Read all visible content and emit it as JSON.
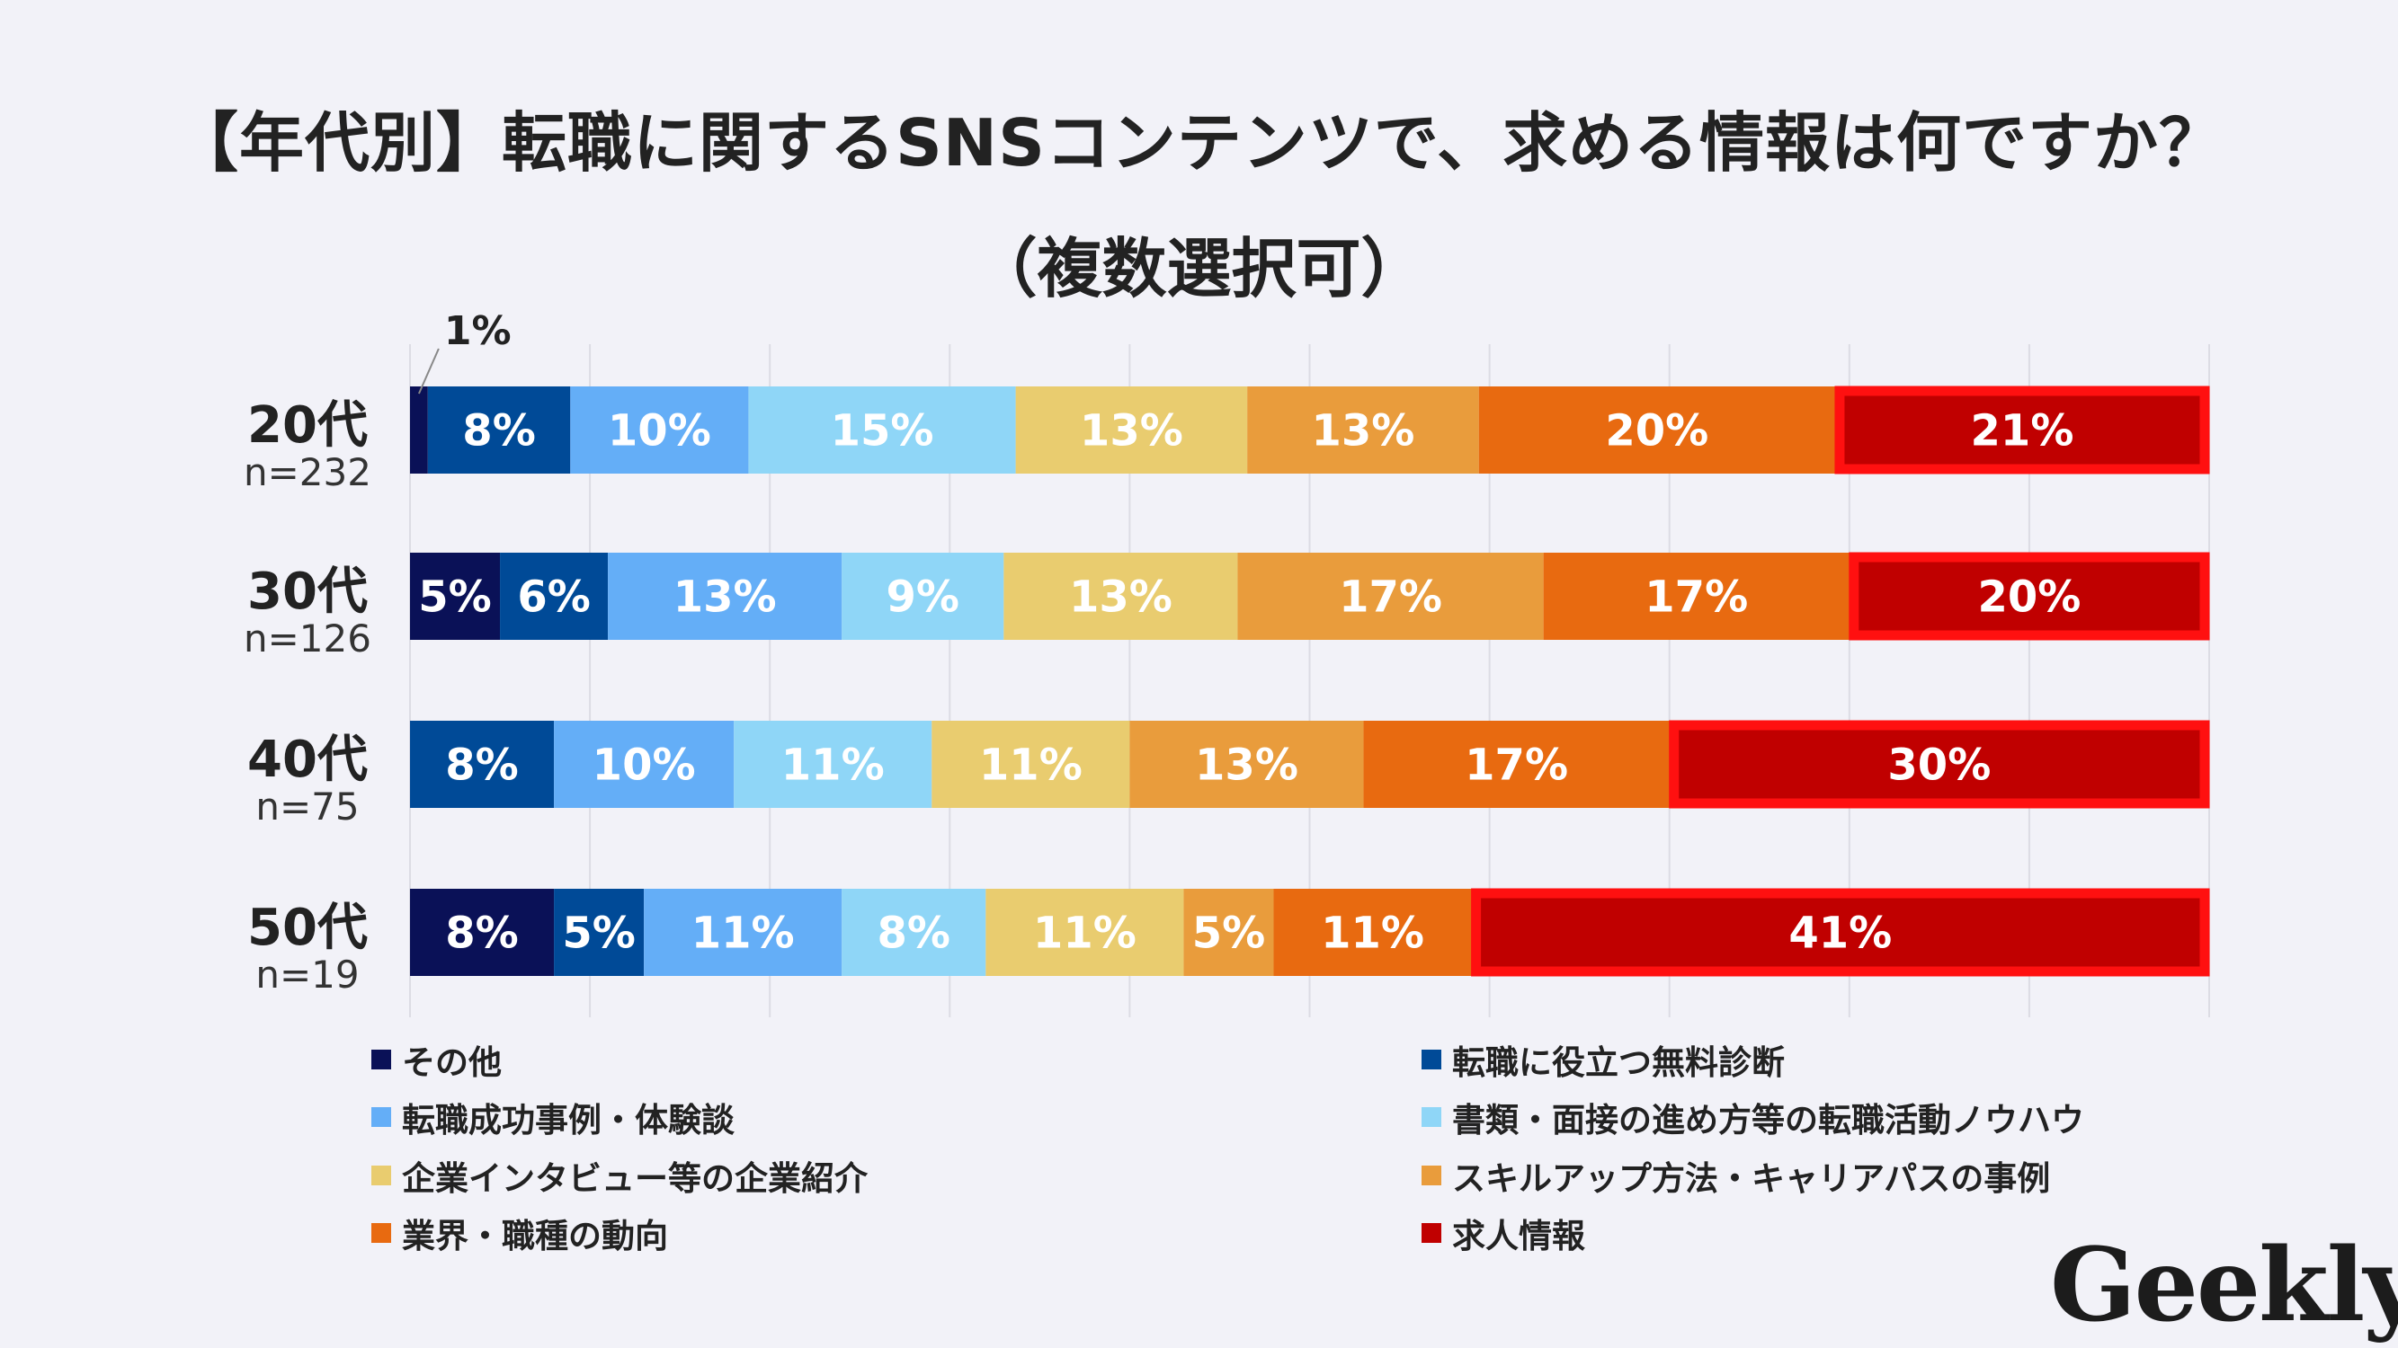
{
  "title": "【年代別】転職に関するSNSコンテンツで、求める情報は何ですか？",
  "subtitle": "（複数選択可）",
  "logo": "Geekly",
  "chart_data": {
    "type": "bar",
    "orientation": "horizontal",
    "stacked": true,
    "normalized": true,
    "title": "【年代別】転職に関するSNSコンテンツで、求める情報は何ですか？",
    "subtitle": "（複数選択可）",
    "grid": true,
    "legend_position": "bottom",
    "categories": [
      "20代",
      "30代",
      "40代",
      "50代"
    ],
    "sample_sizes": [
      "n=232",
      "n=126",
      "n=75",
      "n=19"
    ],
    "series": [
      {
        "name": "その他",
        "color": "#0a1157",
        "values": [
          1,
          5,
          0,
          8
        ]
      },
      {
        "name": "転職に役立つ無料診断",
        "color": "#004a97",
        "values": [
          8,
          6,
          8,
          5
        ]
      },
      {
        "name": "転職成功事例・体験談",
        "color": "#64aef7",
        "values": [
          10,
          13,
          10,
          11
        ]
      },
      {
        "name": "書類・面接の進め方等の転職活動ノウハウ",
        "color": "#8fd6f7",
        "values": [
          15,
          9,
          11,
          8
        ]
      },
      {
        "name": "企業インタビュー等の企業紹介",
        "color": "#e9cc6f",
        "values": [
          13,
          13,
          11,
          11
        ]
      },
      {
        "name": "スキルアップ方法・キャリアパスの事例",
        "color": "#e99c3c",
        "values": [
          13,
          17,
          13,
          5
        ]
      },
      {
        "name": "業界・職種の動向",
        "color": "#e86a10",
        "values": [
          20,
          17,
          17,
          11
        ]
      },
      {
        "name": "求人情報",
        "color": "#c00000",
        "values": [
          21,
          20,
          30,
          41
        ]
      }
    ],
    "highlight_series": "求人情報",
    "highlight_color": "#ff1010",
    "value_suffix": "%"
  }
}
